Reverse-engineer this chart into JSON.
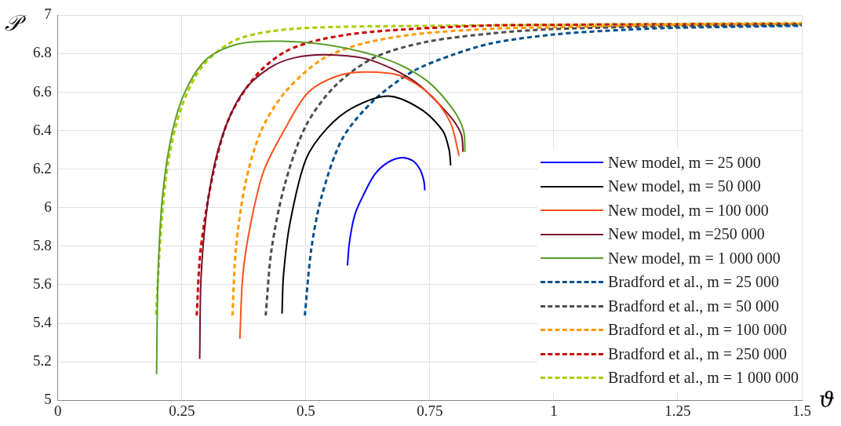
{
  "chart_data": {
    "type": "line",
    "xlabel": "ϑ",
    "ylabel": "𝒫",
    "xlim": [
      0,
      1.5
    ],
    "ylim": [
      5,
      7
    ],
    "xticks": [
      0,
      0.25,
      0.5,
      0.75,
      1,
      1.25,
      1.5
    ],
    "yticks": [
      5,
      5.2,
      5.4,
      5.6,
      5.8,
      6,
      6.2,
      6.4,
      6.6,
      6.8,
      7
    ],
    "grid": true,
    "legend": "bottom right",
    "marker": "none",
    "series": [
      {
        "name": "New model, m = 25 000",
        "color": "#0000ff",
        "line_style": "solid",
        "x": [
          0.584,
          0.587,
          0.593,
          0.601,
          0.615,
          0.638,
          0.665,
          0.693,
          0.715,
          0.73,
          0.738,
          0.74
        ],
        "values": [
          5.7,
          5.8,
          5.9,
          5.98,
          6.06,
          6.17,
          6.235,
          6.26,
          6.245,
          6.2,
          6.14,
          6.09
        ]
      },
      {
        "name": "New model, m = 50 000",
        "color": "#000000",
        "line_style": "solid",
        "x": [
          0.452,
          0.455,
          0.468,
          0.5,
          0.542,
          0.595,
          0.667,
          0.733,
          0.776,
          0.789,
          0.792
        ],
        "values": [
          5.45,
          5.65,
          5.92,
          6.25,
          6.41,
          6.52,
          6.58,
          6.51,
          6.4,
          6.3,
          6.22
        ]
      },
      {
        "name": "New model, m = 100 000",
        "color": "#ff4f1a",
        "line_style": "solid",
        "x": [
          0.367,
          0.373,
          0.389,
          0.415,
          0.458,
          0.505,
          0.564,
          0.622,
          0.691,
          0.754,
          0.792,
          0.809
        ],
        "values": [
          5.32,
          5.65,
          5.92,
          6.19,
          6.41,
          6.6,
          6.685,
          6.705,
          6.685,
          6.58,
          6.44,
          6.27
        ]
      },
      {
        "name": "New model, m =250 000",
        "color": "#7a0f2a",
        "line_style": "solid",
        "x": [
          0.286,
          0.289,
          0.304,
          0.33,
          0.373,
          0.426,
          0.479,
          0.548,
          0.627,
          0.717,
          0.786,
          0.813,
          0.817
        ],
        "values": [
          5.215,
          5.65,
          6.06,
          6.36,
          6.6,
          6.725,
          6.78,
          6.794,
          6.77,
          6.66,
          6.49,
          6.385,
          6.29
        ]
      },
      {
        "name": "New model, m = 1 000 000",
        "color": "#5a9e2a",
        "line_style": "solid",
        "x": [
          0.199,
          0.202,
          0.211,
          0.23,
          0.256,
          0.299,
          0.362,
          0.452,
          0.558,
          0.664,
          0.744,
          0.797,
          0.818,
          0.821
        ],
        "values": [
          5.135,
          5.65,
          6.06,
          6.385,
          6.6,
          6.77,
          6.85,
          6.865,
          6.84,
          6.77,
          6.66,
          6.51,
          6.4,
          6.29
        ]
      },
      {
        "name": "Bradford et al., m = 25 000",
        "color": "#00508c",
        "line_style": "dashed",
        "x": [
          0.498,
          0.511,
          0.532,
          0.574,
          0.638,
          0.717,
          0.797,
          0.876,
          1.0,
          1.147,
          1.25,
          1.5
        ],
        "values": [
          5.44,
          5.785,
          6.06,
          6.36,
          6.56,
          6.71,
          6.795,
          6.855,
          6.9,
          6.925,
          6.935,
          6.945
        ]
      },
      {
        "name": "Bradford et al., m = 50 000",
        "color": "#4d4d4d",
        "line_style": "dashed",
        "x": [
          0.419,
          0.431,
          0.458,
          0.5,
          0.558,
          0.638,
          0.744,
          0.876,
          1.0,
          1.25,
          1.5
        ],
        "values": [
          5.44,
          5.785,
          6.125,
          6.425,
          6.63,
          6.78,
          6.862,
          6.906,
          6.928,
          6.943,
          6.95
        ]
      },
      {
        "name": "Bradford et al., m = 100 000",
        "color": "#ff9900",
        "line_style": "dashed",
        "x": [
          0.352,
          0.359,
          0.378,
          0.41,
          0.458,
          0.532,
          0.611,
          0.717,
          0.876,
          1.0,
          1.25,
          1.5
        ],
        "values": [
          5.44,
          5.785,
          6.125,
          6.4,
          6.6,
          6.77,
          6.85,
          6.9,
          6.93,
          6.937,
          6.95,
          6.955
        ]
      },
      {
        "name": "Bradford et al., m = 250 000",
        "color": "#cc0000",
        "line_style": "dashed",
        "x": [
          0.28,
          0.288,
          0.314,
          0.346,
          0.399,
          0.458,
          0.532,
          0.638,
          0.849,
          1.0,
          1.25,
          1.5
        ],
        "values": [
          5.44,
          5.785,
          6.19,
          6.47,
          6.685,
          6.81,
          6.875,
          6.915,
          6.945,
          6.95,
          6.953,
          6.955
        ]
      },
      {
        "name": "Bradford et al., m = 1 000 000",
        "color": "#aacc00",
        "line_style": "dashed",
        "x": [
          0.198,
          0.209,
          0.224,
          0.251,
          0.293,
          0.362,
          0.479,
          0.75,
          1.0,
          1.25,
          1.5
        ],
        "values": [
          5.445,
          5.92,
          6.26,
          6.535,
          6.74,
          6.875,
          6.93,
          6.945,
          6.95,
          6.955,
          6.96
        ]
      }
    ]
  }
}
